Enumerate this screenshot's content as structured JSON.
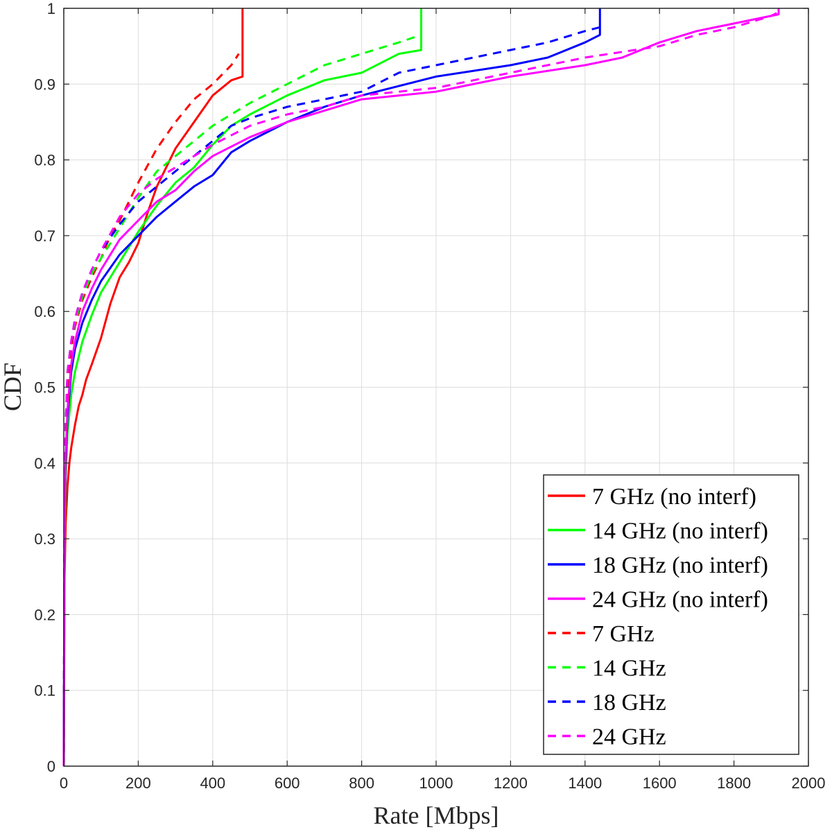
{
  "chart_data": {
    "type": "line",
    "title": "",
    "xlabel": "Rate [Mbps]",
    "ylabel": "CDF",
    "xlim": [
      0,
      2000
    ],
    "ylim": [
      0,
      1
    ],
    "grid": true,
    "legend_position": "bottom-right",
    "x_ticks": [
      "0",
      "200",
      "400",
      "600",
      "800",
      "1000",
      "1200",
      "1400",
      "1600",
      "1800",
      "2000"
    ],
    "y_ticks": [
      "0",
      "0.1",
      "0.2",
      "0.3",
      "0.4",
      "0.5",
      "0.6",
      "0.7",
      "0.8",
      "0.9",
      "1"
    ],
    "series": [
      {
        "name": "7 GHz (no interf)",
        "color": "#ff0000",
        "dash": "solid",
        "x": [
          0,
          2,
          5,
          10,
          15,
          20,
          30,
          40,
          50,
          60,
          75,
          100,
          125,
          150,
          175,
          200,
          225,
          250,
          275,
          300,
          350,
          400,
          450,
          480,
          480
        ],
        "y": [
          0,
          0.25,
          0.32,
          0.37,
          0.4,
          0.42,
          0.45,
          0.475,
          0.49,
          0.51,
          0.53,
          0.565,
          0.61,
          0.645,
          0.665,
          0.69,
          0.73,
          0.765,
          0.79,
          0.815,
          0.85,
          0.885,
          0.905,
          0.91,
          1.0
        ]
      },
      {
        "name": "14 GHz (no interf)",
        "color": "#00ff00",
        "dash": "solid",
        "x": [
          0,
          2,
          5,
          10,
          20,
          30,
          50,
          75,
          100,
          150,
          200,
          250,
          300,
          350,
          400,
          450,
          500,
          600,
          700,
          800,
          900,
          960,
          960
        ],
        "y": [
          0,
          0.3,
          0.38,
          0.44,
          0.49,
          0.52,
          0.56,
          0.595,
          0.625,
          0.665,
          0.705,
          0.74,
          0.77,
          0.79,
          0.82,
          0.845,
          0.86,
          0.885,
          0.905,
          0.915,
          0.94,
          0.945,
          1.0
        ]
      },
      {
        "name": "18 GHz (no interf)",
        "color": "#0000ff",
        "dash": "solid",
        "x": [
          0,
          2,
          5,
          10,
          20,
          30,
          50,
          75,
          100,
          150,
          200,
          250,
          300,
          350,
          400,
          450,
          500,
          600,
          700,
          800,
          1000,
          1200,
          1300,
          1400,
          1440,
          1440
        ],
        "y": [
          0,
          0.32,
          0.4,
          0.46,
          0.52,
          0.55,
          0.585,
          0.615,
          0.64,
          0.675,
          0.7,
          0.725,
          0.745,
          0.765,
          0.78,
          0.81,
          0.825,
          0.85,
          0.87,
          0.885,
          0.91,
          0.925,
          0.935,
          0.955,
          0.965,
          1.0
        ]
      },
      {
        "name": "24 GHz (no interf)",
        "color": "#ff00ff",
        "dash": "solid",
        "x": [
          0,
          2,
          5,
          10,
          20,
          30,
          50,
          75,
          100,
          150,
          200,
          250,
          300,
          350,
          400,
          500,
          600,
          700,
          800,
          1000,
          1200,
          1400,
          1500,
          1600,
          1700,
          1800,
          1900,
          1920,
          1920
        ],
        "y": [
          0,
          0.32,
          0.41,
          0.47,
          0.53,
          0.56,
          0.6,
          0.63,
          0.655,
          0.695,
          0.72,
          0.745,
          0.76,
          0.785,
          0.805,
          0.83,
          0.85,
          0.865,
          0.88,
          0.89,
          0.91,
          0.925,
          0.935,
          0.955,
          0.97,
          0.98,
          0.99,
          0.992,
          1.0
        ]
      },
      {
        "name": "7 GHz",
        "color": "#ff0000",
        "dash": "dashed",
        "x": [
          0,
          2,
          5,
          10,
          20,
          30,
          50,
          75,
          100,
          125,
          150,
          175,
          200,
          250,
          300,
          350,
          400,
          450,
          470,
          470
        ],
        "y": [
          0,
          0.35,
          0.43,
          0.5,
          0.55,
          0.58,
          0.615,
          0.645,
          0.67,
          0.7,
          0.72,
          0.745,
          0.77,
          0.815,
          0.85,
          0.88,
          0.9,
          0.925,
          0.94,
          0.94
        ]
      },
      {
        "name": "14 GHz",
        "color": "#00ff00",
        "dash": "dashed",
        "x": [
          0,
          2,
          5,
          10,
          20,
          30,
          50,
          75,
          100,
          150,
          200,
          250,
          300,
          350,
          400,
          450,
          500,
          600,
          700,
          800,
          900,
          960
        ],
        "y": [
          0,
          0.36,
          0.45,
          0.52,
          0.56,
          0.585,
          0.62,
          0.65,
          0.67,
          0.71,
          0.75,
          0.785,
          0.805,
          0.825,
          0.845,
          0.86,
          0.875,
          0.9,
          0.925,
          0.94,
          0.955,
          0.965
        ]
      },
      {
        "name": "18 GHz",
        "color": "#0000ff",
        "dash": "dashed",
        "x": [
          0,
          2,
          5,
          10,
          20,
          30,
          50,
          75,
          100,
          150,
          200,
          250,
          300,
          350,
          400,
          450,
          500,
          600,
          700,
          800,
          900,
          1000,
          1200,
          1300,
          1400,
          1440
        ],
        "y": [
          0,
          0.36,
          0.45,
          0.52,
          0.56,
          0.59,
          0.625,
          0.655,
          0.68,
          0.715,
          0.745,
          0.765,
          0.785,
          0.805,
          0.825,
          0.845,
          0.855,
          0.87,
          0.88,
          0.89,
          0.915,
          0.925,
          0.945,
          0.955,
          0.97,
          0.975
        ]
      },
      {
        "name": "24 GHz",
        "color": "#ff00ff",
        "dash": "dashed",
        "x": [
          0,
          2,
          5,
          10,
          20,
          30,
          50,
          75,
          100,
          150,
          200,
          250,
          300,
          350,
          400,
          500,
          600,
          700,
          800,
          900,
          1000,
          1200,
          1400,
          1600,
          1700,
          1800,
          1900,
          1920
        ],
        "y": [
          0,
          0.36,
          0.45,
          0.52,
          0.56,
          0.59,
          0.625,
          0.655,
          0.68,
          0.725,
          0.755,
          0.775,
          0.79,
          0.805,
          0.82,
          0.845,
          0.86,
          0.87,
          0.885,
          0.89,
          0.895,
          0.915,
          0.935,
          0.95,
          0.965,
          0.975,
          0.99,
          0.995
        ]
      }
    ]
  }
}
